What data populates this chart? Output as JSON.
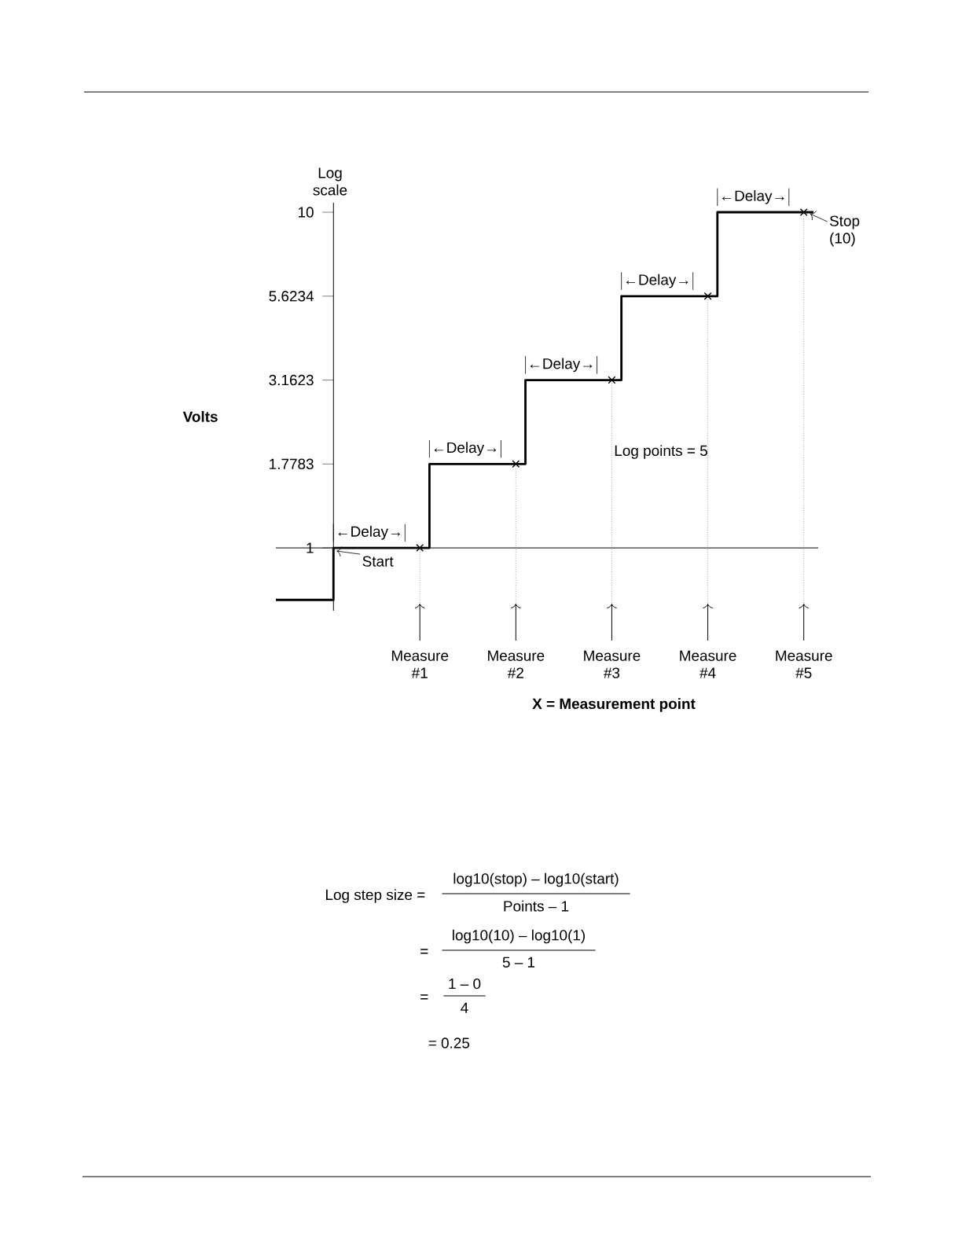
{
  "chart_data": {
    "type": "step",
    "ylabel": "Volts",
    "log": "y",
    "xlim": [
      -0.6,
      5.05
    ],
    "ylim": [
      0.65,
      10.67
    ],
    "ref_lines": [
      {
        "axis": "y",
        "value": 1,
        "color": "#000000"
      },
      {
        "axis": "x",
        "value": 0.9,
        "color": "#808080",
        "line_style": "dotted"
      },
      {
        "axis": "x",
        "value": 1.9,
        "color": "#808080",
        "line_style": "dotted"
      },
      {
        "axis": "x",
        "value": 2.9,
        "color": "#808080",
        "line_style": "dotted"
      },
      {
        "axis": "x",
        "value": 3.9,
        "color": "#808080",
        "line_style": "dotted"
      },
      {
        "axis": "x",
        "value": 4.9,
        "color": "#808080",
        "line_style": "dotted"
      }
    ],
    "yticks": [
      1,
      1.7783,
      3.1623,
      5.6234,
      10
    ],
    "xticks": [
      {
        "value": 0.9,
        "label": "Measure #1"
      },
      {
        "value": 1.9,
        "label": "Measure #2"
      },
      {
        "value": 2.9,
        "label": "Measure #3"
      },
      {
        "value": 3.9,
        "label": "Measure #4"
      },
      {
        "value": 4.9,
        "label": "Measure #5"
      }
    ],
    "series": [
      {
        "color": "#000000",
        "marker": "none",
        "x": [
          -0.6,
          0,
          1,
          2,
          3,
          4,
          5
        ],
        "values": [
          0.7,
          1,
          1.7783,
          3.1623,
          5.6234,
          10,
          10
        ]
      },
      {
        "type": "scatter",
        "color": "#000000",
        "marker": "cross",
        "x": [
          0.9,
          1.9,
          2.9,
          3.9,
          4.9
        ],
        "values": [
          1,
          1.7783,
          3.1623,
          5.6234,
          10
        ]
      }
    ],
    "annotations": [
      {
        "text": "←Delay→",
        "x": 0,
        "y": 1
      },
      {
        "text": "←Delay→",
        "x": 1,
        "y": 1.7783
      },
      {
        "text": "←Delay→",
        "x": 2,
        "y": 3.1623
      },
      {
        "text": "←Delay→",
        "x": 3,
        "y": 5.6234
      },
      {
        "text": "←Delay→",
        "x": 4,
        "y": 10
      },
      {
        "text": "Start",
        "x": 0,
        "y": 1
      },
      {
        "text": "Stop (10)",
        "x": 4.9,
        "y": 10
      },
      "Log points = 5",
      "Log scale",
      "X = Measurement point",
      "Log step size =",
      "log10(stop) – log10(start)",
      "Points – 1",
      "=",
      "log10(10) – log10(1)",
      "5 – 1",
      "=",
      "1 – 0",
      "4",
      "= 0.25"
    ]
  }
}
